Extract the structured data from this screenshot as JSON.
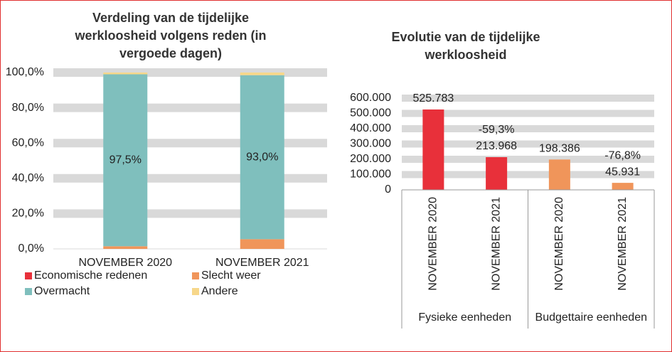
{
  "chart_data": [
    {
      "type": "stacked_bar",
      "title": "Verdeling van de tijdelijke werkloosheid volgens reden (in vergoede dagen)",
      "categories": [
        "NOVEMBER 2020",
        "NOVEMBER 2021"
      ],
      "series": [
        {
          "name": "Economische redenen",
          "color": "#e8303a",
          "values": [
            0,
            0
          ]
        },
        {
          "name": "Slecht weer",
          "color": "#f0955a",
          "values": [
            1.5,
            5.5
          ]
        },
        {
          "name": "Overmacht",
          "color": "#7fbfbd",
          "values": [
            97.5,
            93.0
          ],
          "value_labels": [
            "97,5%",
            "93,0%"
          ]
        },
        {
          "name": "Andere",
          "color": "#f7d78a",
          "values": [
            1.0,
            1.5
          ]
        }
      ],
      "ylim": [
        0,
        100
      ],
      "yticks": [
        {
          "value": 0,
          "label": "0,0%"
        },
        {
          "value": 20,
          "label": "20,0%"
        },
        {
          "value": 40,
          "label": "40,0%"
        },
        {
          "value": 60,
          "label": "60,0%"
        },
        {
          "value": 80,
          "label": "80,0%"
        },
        {
          "value": 100,
          "label": "100,0%"
        }
      ],
      "grid": true
    },
    {
      "type": "bar",
      "title": "Evolutie van de tijdelijke werkloosheid",
      "categories": [
        "NOVEMBER 2020",
        "NOVEMBER 2021",
        "NOVEMBER 2020",
        "NOVEMBER 2021"
      ],
      "groups": [
        "Fysieke eenheden",
        "Budgettaire eenheden"
      ],
      "values": [
        525783,
        213968,
        198386,
        45931
      ],
      "value_labels": [
        "525.783",
        "213.968",
        "198.386",
        "45.931"
      ],
      "change_labels": [
        null,
        "-59,3%",
        null,
        "-76,8%"
      ],
      "colors": [
        "#e8303a",
        "#e8303a",
        "#f0955a",
        "#f0955a"
      ],
      "ylim": [
        0,
        600000
      ],
      "yticks": [
        0,
        {
          "value": 100000,
          "label": "100.000"
        },
        {
          "value": 200000,
          "label": "200.000"
        },
        {
          "value": 300000,
          "label": "300.000"
        },
        {
          "value": 400000,
          "label": "400.000"
        },
        {
          "value": 500000,
          "label": "500.000"
        },
        {
          "value": 600000,
          "label": "600.000"
        }
      ],
      "grid": true
    }
  ]
}
